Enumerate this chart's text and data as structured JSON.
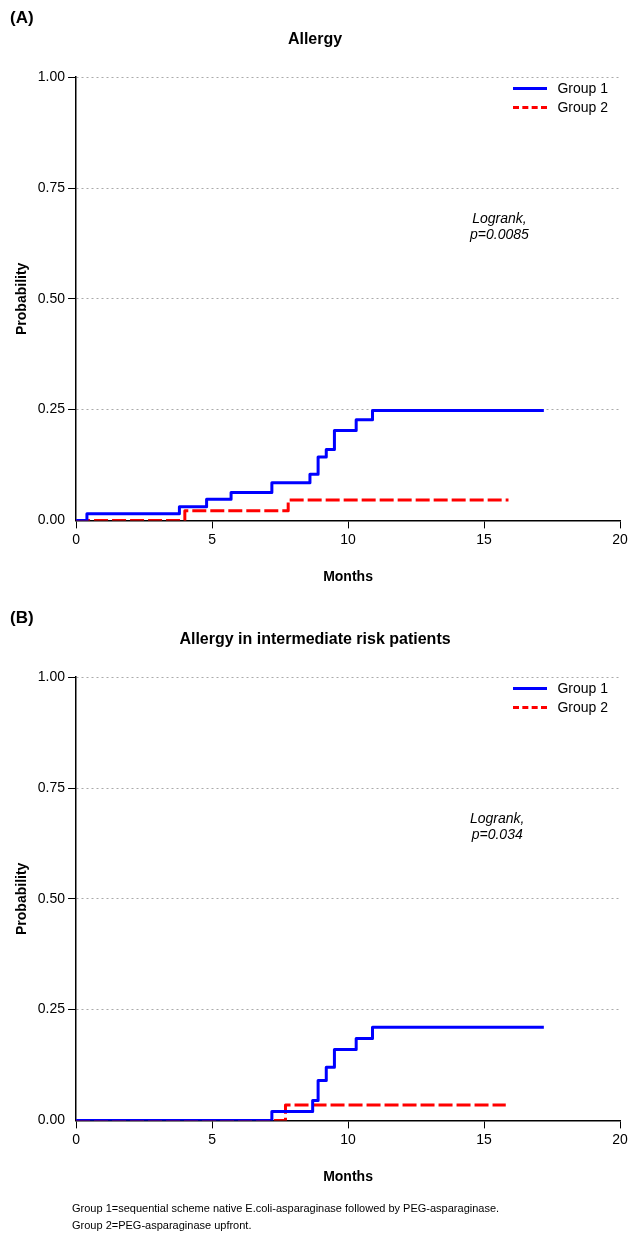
{
  "chart_data": [
    {
      "type": "step",
      "title": "Allergy",
      "xlabel": "Months",
      "ylabel": "Probability",
      "xlim": [
        0,
        20
      ],
      "xticks": [
        0,
        5,
        10,
        15,
        20
      ],
      "ylim": [
        0,
        1
      ],
      "yticks": [
        {
          "value": 0,
          "label": "0.00"
        },
        {
          "value": 0.25,
          "label": "0.25"
        },
        {
          "value": 0.5,
          "label": "0.50"
        },
        {
          "value": 0.75,
          "label": "0.75"
        },
        {
          "value": 1,
          "label": "1.00"
        }
      ],
      "grid": "y",
      "legend": "top right",
      "marker": "none",
      "annotations": [
        "(A)",
        "Logrank,\np=0.0085"
      ],
      "series": [
        {
          "name": "Group 1",
          "color": "#0000ff",
          "line_style": "solid",
          "x": [
            0,
            0.4,
            3.8,
            4.8,
            5.7,
            7.2,
            8.6,
            8.9,
            9.2,
            9.5,
            10.3,
            10.9,
            17.2
          ],
          "values": [
            0,
            0.015,
            0.031,
            0.048,
            0.063,
            0.085,
            0.104,
            0.143,
            0.16,
            0.203,
            0.227,
            0.248,
            0.248
          ]
        },
        {
          "name": "Group 2",
          "color": "#ff0000",
          "line_style": "dashed",
          "x": [
            0,
            4.0,
            7.8,
            15.9
          ],
          "values": [
            0,
            0.022,
            0.046,
            0.046
          ]
        }
      ]
    },
    {
      "type": "step",
      "title": "Allergy in intermediate risk patients",
      "xlabel": "Months",
      "ylabel": "Probability",
      "xlim": [
        0,
        20
      ],
      "xticks": [
        0,
        5,
        10,
        15,
        20
      ],
      "ylim": [
        0,
        1
      ],
      "yticks": [
        {
          "value": 0,
          "label": "0.00"
        },
        {
          "value": 0.25,
          "label": "0.25"
        },
        {
          "value": 0.5,
          "label": "0.50"
        },
        {
          "value": 0.75,
          "label": "0.75"
        },
        {
          "value": 1,
          "label": "1.00"
        }
      ],
      "grid": "y",
      "legend": "top right",
      "marker": "none",
      "annotations": [
        "(B)",
        "Logrank,\np=0.034",
        "Group 1=sequential scheme native E.coli-asparaginase followed by PEG-asparaginase.\nGroup 2=PEG-asparaginase upfront."
      ],
      "series": [
        {
          "name": "Group 1",
          "color": "#0000ff",
          "line_style": "solid",
          "x": [
            0,
            7.2,
            8.7,
            8.9,
            9.2,
            9.5,
            10.3,
            10.9,
            17.2
          ],
          "values": [
            0,
            0.02,
            0.045,
            0.09,
            0.12,
            0.16,
            0.185,
            0.21,
            0.21
          ]
        },
        {
          "name": "Group 2",
          "color": "#ff0000",
          "line_style": "dashed",
          "x": [
            0,
            7.7,
            15.8
          ],
          "values": [
            0,
            0.035,
            0.035
          ]
        }
      ]
    }
  ]
}
